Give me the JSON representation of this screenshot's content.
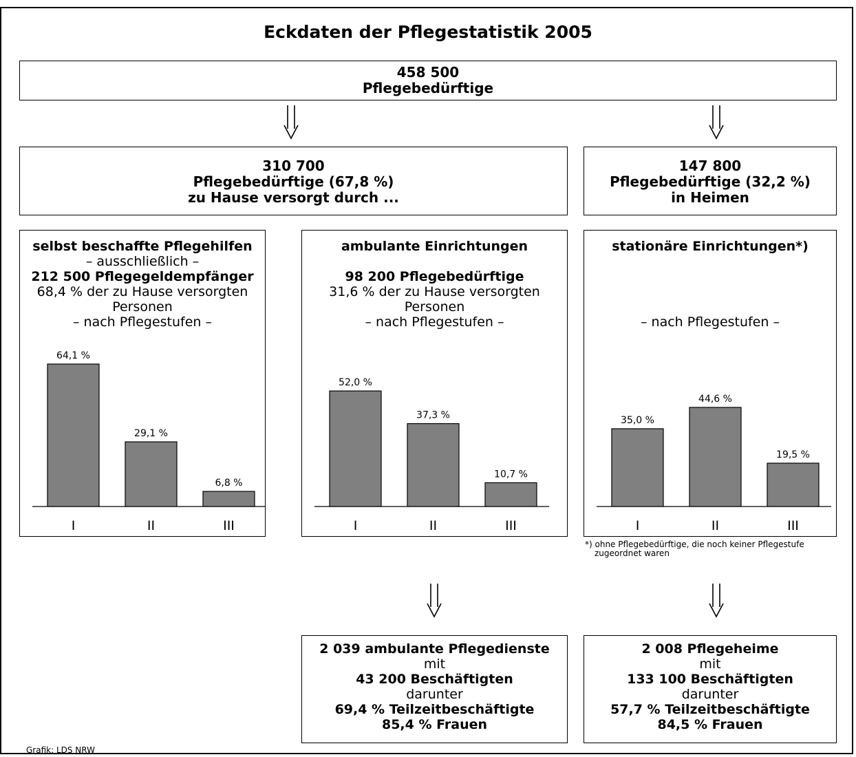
{
  "title": "Eckdaten der Pflegestatistik 2005",
  "top": {
    "line1": "458 500",
    "line2": "Pflegebedürftige"
  },
  "home": {
    "line1": "310 700",
    "line2": "Pflegebedürftige (67,8 %)",
    "line3": "zu Hause versorgt durch ..."
  },
  "heime": {
    "line1": "147 800",
    "line2": "Pflegebedürftige (32,2 %)",
    "line3": "in Heimen"
  },
  "panels": [
    {
      "title": "selbst beschaffte Pflegehilfen",
      "sub": "– ausschließlich –",
      "count": "212 500 Pflegegeldempfänger",
      "share": "68,4 % der zu Hause versorgten",
      "share2": "Personen",
      "stufen": "– nach Pflegestufen –"
    },
    {
      "title": "ambulante Einrichtungen",
      "sub": "",
      "count": "98 200 Pflegebedürftige",
      "share": "31,6 % der zu Hause versorgten",
      "share2": "Personen",
      "stufen": "– nach Pflegestufen –"
    },
    {
      "title": "stationäre Einrichtungen*)",
      "sub": "",
      "count": "",
      "share": "",
      "share2": "",
      "stufen": "– nach Pflegestufen –"
    }
  ],
  "chart_data": [
    {
      "type": "bar",
      "categories": [
        "I",
        "II",
        "III"
      ],
      "values": [
        64.1,
        29.1,
        6.8
      ],
      "value_labels": [
        "64,1 %",
        "29,1 %",
        "6,8 %"
      ]
    },
    {
      "type": "bar",
      "categories": [
        "I",
        "II",
        "III"
      ],
      "values": [
        52.0,
        37.3,
        10.7
      ],
      "value_labels": [
        "52,0 %",
        "37,3 %",
        "10,7 %"
      ]
    },
    {
      "type": "bar",
      "categories": [
        "I",
        "II",
        "III"
      ],
      "values": [
        35.0,
        44.6,
        19.5
      ],
      "value_labels": [
        "35,0 %",
        "44,6 %",
        "19,5 %"
      ]
    }
  ],
  "footnote": {
    "line1": "*) ohne Pflegebedürftige, die noch keiner Pflegestufe",
    "line2": "zugeordnet waren"
  },
  "dienste": {
    "line1": "2 039 ambulante Pflegedienste",
    "line2": "mit",
    "line3": "43 200 Beschäftigten",
    "line4": "darunter",
    "line5": "69,4 % Teilzeitbeschäftigte",
    "line6": "85,4 % Frauen"
  },
  "pflegeheime": {
    "line1": "2 008 Pflegeheime",
    "line2": "mit",
    "line3": "133 100 Beschäftigten",
    "line4": "darunter",
    "line5": "57,7 % Teilzeitbeschäftigte",
    "line6": "84,5 % Frauen"
  },
  "credit": "Grafik: LDS NRW",
  "colors": {
    "bar_fill": "#808080",
    "bar_stroke": "#000000"
  },
  "icons": {
    "arrow": "double-arrow-down-icon"
  }
}
